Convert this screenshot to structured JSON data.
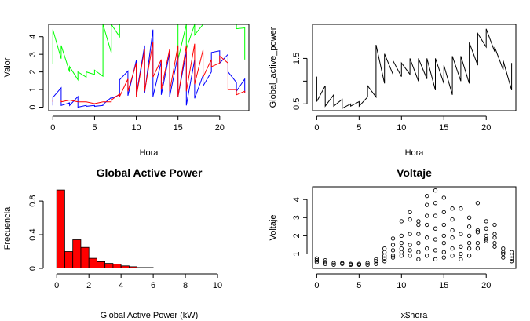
{
  "chart_data": [
    {
      "type": "line",
      "panel": "top-left",
      "title": "",
      "xlabel": "Hora",
      "ylabel": "Valor",
      "xlim": [
        -0.5,
        23.5
      ],
      "ylim": [
        -0.2,
        4.7
      ],
      "xticks": [
        0,
        5,
        10,
        15,
        20
      ],
      "yticks": [
        0,
        1,
        2,
        3,
        4
      ],
      "series": [
        {
          "color": "#00ff00",
          "points": [
            [
              0,
              2.45
            ],
            [
              0,
              4.4
            ],
            [
              1,
              2.75
            ],
            [
              1,
              3.5
            ],
            [
              2,
              2.0
            ],
            [
              2,
              2.3
            ],
            [
              3,
              1.55
            ],
            [
              3,
              2.0
            ],
            [
              4,
              1.7
            ],
            [
              4,
              2.0
            ],
            [
              5,
              1.85
            ],
            [
              5,
              2.1
            ],
            [
              6,
              1.75
            ],
            [
              6,
              4.7
            ],
            [
              7,
              3.1
            ],
            [
              7,
              4.7
            ],
            [
              8,
              4.0
            ],
            [
              8,
              4.7
            ],
            [
              9,
              4.7
            ],
            [
              10,
              4.7
            ],
            [
              11,
              4.7
            ],
            [
              12,
              4.7
            ],
            [
              13,
              4.7
            ],
            [
              14,
              4.7
            ],
            [
              15,
              4.7
            ],
            [
              15,
              2.7
            ],
            [
              16,
              4.7
            ],
            [
              16,
              3.3
            ],
            [
              17,
              4.7
            ],
            [
              17,
              4.1
            ],
            [
              18,
              4.7
            ],
            [
              19,
              4.7
            ],
            [
              20,
              4.7
            ],
            [
              21,
              4.7
            ],
            [
              22,
              4.7
            ],
            [
              22,
              4.45
            ],
            [
              23,
              4.5
            ],
            [
              23,
              2.7
            ]
          ]
        },
        {
          "color": "#0000ff",
          "points": [
            [
              0,
              0.1
            ],
            [
              0,
              0.55
            ],
            [
              1,
              1.1
            ],
            [
              1,
              0.1
            ],
            [
              2,
              0.25
            ],
            [
              2,
              0.1
            ],
            [
              3,
              0.6
            ],
            [
              3,
              0.0
            ],
            [
              4,
              0.1
            ],
            [
              4,
              0.05
            ],
            [
              5,
              0.1
            ],
            [
              5,
              0.05
            ],
            [
              6,
              0.1
            ],
            [
              6,
              0.15
            ],
            [
              7,
              0.55
            ],
            [
              7,
              0.5
            ],
            [
              8,
              0.7
            ],
            [
              8,
              1.55
            ],
            [
              9,
              2.05
            ],
            [
              9,
              0.65
            ],
            [
              10,
              2.65
            ],
            [
              10,
              0.7
            ],
            [
              11,
              3.5
            ],
            [
              11,
              0.8
            ],
            [
              12,
              4.4
            ],
            [
              12,
              0.6
            ],
            [
              13,
              2.6
            ],
            [
              13,
              0.7
            ],
            [
              14,
              3.1
            ],
            [
              14,
              0.6
            ],
            [
              15,
              2.95
            ],
            [
              15,
              0.6
            ],
            [
              16,
              3.15
            ],
            [
              16,
              0.1
            ],
            [
              17,
              2.7
            ],
            [
              17,
              0.5
            ],
            [
              18,
              1.8
            ],
            [
              18,
              1.2
            ],
            [
              19,
              2.0
            ],
            [
              19,
              3.1
            ],
            [
              20,
              3.2
            ],
            [
              20,
              2.5
            ],
            [
              21,
              3.0
            ],
            [
              21,
              2.0
            ],
            [
              22,
              1.4
            ],
            [
              22,
              0.9
            ],
            [
              23,
              1.6
            ],
            [
              23,
              0.8
            ]
          ]
        },
        {
          "color": "#ff0000",
          "points": [
            [
              0,
              0.3
            ],
            [
              0,
              0.4
            ],
            [
              1,
              0.4
            ],
            [
              1,
              0.3
            ],
            [
              2,
              0.4
            ],
            [
              3,
              0.3
            ],
            [
              4,
              0.3
            ],
            [
              5,
              0.2
            ],
            [
              6,
              0.3
            ],
            [
              7,
              0.3
            ],
            [
              7,
              0.4
            ],
            [
              8,
              0.75
            ],
            [
              8,
              0.6
            ],
            [
              9,
              1.6
            ],
            [
              9,
              0.9
            ],
            [
              10,
              2.5
            ],
            [
              10,
              0.6
            ],
            [
              11,
              3.3
            ],
            [
              11,
              0.9
            ],
            [
              12,
              3.7
            ],
            [
              12,
              1.7
            ],
            [
              13,
              2.7
            ],
            [
              13,
              1.0
            ],
            [
              14,
              3.3
            ],
            [
              14,
              0.9
            ],
            [
              15,
              3.5
            ],
            [
              15,
              0.6
            ],
            [
              16,
              3.5
            ],
            [
              16,
              0.9
            ],
            [
              17,
              3.6
            ],
            [
              17,
              1.3
            ],
            [
              18,
              3.25
            ],
            [
              18,
              1.7
            ],
            [
              19,
              2.7
            ],
            [
              19,
              2.3
            ],
            [
              20,
              2.5
            ],
            [
              20,
              2.9
            ],
            [
              21,
              2.5
            ],
            [
              21,
              1.0
            ],
            [
              22,
              1.0
            ],
            [
              22,
              0.7
            ],
            [
              23,
              0.9
            ],
            [
              23,
              0.8
            ]
          ]
        }
      ]
    },
    {
      "type": "line",
      "panel": "top-right",
      "title": "",
      "xlabel": "Hora",
      "ylabel": "Global_active_power",
      "xlim": [
        -0.5,
        23.5
      ],
      "ylim": [
        0.35,
        2.25
      ],
      "xticks": [
        0,
        5,
        10,
        15,
        20
      ],
      "yticks": [
        0.5,
        1.0,
        1.5
      ],
      "ytick_labels": [
        "0.5",
        "",
        "1.5"
      ],
      "series": [
        {
          "color": "#000000",
          "points": [
            [
              0,
              1.1
            ],
            [
              0,
              0.55
            ],
            [
              1,
              0.9
            ],
            [
              1,
              0.45
            ],
            [
              2,
              0.7
            ],
            [
              2,
              0.45
            ],
            [
              3,
              0.6
            ],
            [
              3,
              0.4
            ],
            [
              4,
              0.5
            ],
            [
              4,
              0.45
            ],
            [
              5,
              0.55
            ],
            [
              5,
              0.45
            ],
            [
              6,
              0.65
            ],
            [
              6,
              0.9
            ],
            [
              7,
              0.65
            ],
            [
              7,
              1.8
            ],
            [
              8,
              0.95
            ],
            [
              8,
              1.6
            ],
            [
              9,
              1.15
            ],
            [
              9,
              1.45
            ],
            [
              10,
              1.1
            ],
            [
              10,
              1.4
            ],
            [
              11,
              1.15
            ],
            [
              11,
              1.5
            ],
            [
              12,
              1.0
            ],
            [
              12,
              1.5
            ],
            [
              13,
              1.05
            ],
            [
              13,
              1.5
            ],
            [
              14,
              0.8
            ],
            [
              14,
              1.5
            ],
            [
              15,
              0.95
            ],
            [
              15,
              1.35
            ],
            [
              16,
              0.7
            ],
            [
              16,
              1.55
            ],
            [
              17,
              1.0
            ],
            [
              17,
              1.55
            ],
            [
              18,
              0.95
            ],
            [
              18,
              1.85
            ],
            [
              19,
              1.35
            ],
            [
              19,
              2.05
            ],
            [
              20,
              1.75
            ],
            [
              20,
              2.15
            ],
            [
              21,
              1.65
            ],
            [
              21,
              1.75
            ],
            [
              22,
              1.25
            ],
            [
              22,
              1.45
            ],
            [
              23,
              0.8
            ],
            [
              23,
              1.4
            ]
          ]
        }
      ]
    },
    {
      "type": "bar",
      "panel": "bottom-left",
      "title": "Global Active Power",
      "xlabel": "Global Active Power (kW)",
      "ylabel": "Frecuencia",
      "xlim": [
        -0.5,
        12.0
      ],
      "ylim": [
        0,
        0.95
      ],
      "xticks": [
        0,
        2,
        4,
        6,
        8,
        10
      ],
      "yticks": [
        0.0,
        0.4,
        0.8
      ],
      "bin_width": 0.5,
      "bar_color": "#ff0000",
      "bins_start": [
        0,
        0.5,
        1.0,
        1.5,
        2.0,
        2.5,
        3.0,
        3.5,
        4.0,
        4.5,
        5.0,
        5.5,
        6.0
      ],
      "values": [
        0.93,
        0.2,
        0.34,
        0.25,
        0.12,
        0.08,
        0.06,
        0.05,
        0.03,
        0.02,
        0.01,
        0.01,
        0.005
      ]
    },
    {
      "type": "scatter",
      "panel": "bottom-right",
      "title": "Voltaje",
      "xlabel": "x$hora",
      "ylabel": "Voltaje",
      "xlim": [
        -0.5,
        23.5
      ],
      "ylim": [
        0.2,
        4.7
      ],
      "xticks": [
        0,
        5,
        10,
        15,
        20
      ],
      "yticks": [
        1,
        2,
        3,
        4
      ],
      "points": [
        [
          0,
          0.55
        ],
        [
          0,
          0.65
        ],
        [
          0,
          0.75
        ],
        [
          1,
          0.45
        ],
        [
          1,
          0.55
        ],
        [
          1,
          0.65
        ],
        [
          2,
          0.4
        ],
        [
          2,
          0.5
        ],
        [
          3,
          0.45
        ],
        [
          3,
          0.5
        ],
        [
          4,
          0.4
        ],
        [
          4,
          0.45
        ],
        [
          5,
          0.4
        ],
        [
          5,
          0.45
        ],
        [
          6,
          0.4
        ],
        [
          6,
          0.5
        ],
        [
          7,
          0.45
        ],
        [
          7,
          0.6
        ],
        [
          7,
          0.7
        ],
        [
          8,
          0.6
        ],
        [
          8,
          0.75
        ],
        [
          8,
          0.9
        ],
        [
          8,
          1.1
        ],
        [
          8,
          1.3
        ],
        [
          9,
          0.8
        ],
        [
          9,
          0.9
        ],
        [
          9,
          1.2
        ],
        [
          9,
          1.5
        ],
        [
          9,
          1.85
        ],
        [
          10,
          0.9
        ],
        [
          10,
          1.1
        ],
        [
          10,
          1.3
        ],
        [
          10,
          1.6
        ],
        [
          10,
          2.0
        ],
        [
          10,
          2.8
        ],
        [
          11,
          0.9
        ],
        [
          11,
          1.2
        ],
        [
          11,
          1.5
        ],
        [
          11,
          2.1
        ],
        [
          11,
          2.9
        ],
        [
          11,
          3.3
        ],
        [
          12,
          0.7
        ],
        [
          12,
          1.1
        ],
        [
          12,
          1.6
        ],
        [
          12,
          2.1
        ],
        [
          12,
          2.6
        ],
        [
          12,
          2.8
        ],
        [
          13,
          0.9
        ],
        [
          13,
          1.3
        ],
        [
          13,
          1.9
        ],
        [
          13,
          2.6
        ],
        [
          13,
          3.1
        ],
        [
          13,
          3.7
        ],
        [
          13,
          4.2
        ],
        [
          14,
          0.7
        ],
        [
          14,
          1.2
        ],
        [
          14,
          1.8
        ],
        [
          14,
          2.4
        ],
        [
          14,
          3.1
        ],
        [
          14,
          3.8
        ],
        [
          14,
          4.5
        ],
        [
          15,
          0.8
        ],
        [
          15,
          1.1
        ],
        [
          15,
          1.6
        ],
        [
          15,
          2.0
        ],
        [
          15,
          2.6
        ],
        [
          15,
          3.3
        ],
        [
          15,
          4.1
        ],
        [
          16,
          0.9
        ],
        [
          16,
          1.3
        ],
        [
          16,
          1.9
        ],
        [
          16,
          2.3
        ],
        [
          16,
          2.9
        ],
        [
          16,
          3.5
        ],
        [
          17,
          0.7
        ],
        [
          17,
          1.0
        ],
        [
          17,
          1.4
        ],
        [
          17,
          2.1
        ],
        [
          17,
          3.5
        ],
        [
          18,
          0.9
        ],
        [
          18,
          1.3
        ],
        [
          18,
          1.6
        ],
        [
          18,
          2.0
        ],
        [
          18,
          2.5
        ],
        [
          18,
          3.0
        ],
        [
          19,
          1.3
        ],
        [
          19,
          1.6
        ],
        [
          19,
          2.2
        ],
        [
          19,
          2.3
        ],
        [
          19,
          3.8
        ],
        [
          20,
          1.7
        ],
        [
          20,
          1.8
        ],
        [
          20,
          2.0
        ],
        [
          20,
          2.4
        ],
        [
          20,
          2.8
        ],
        [
          21,
          1.4
        ],
        [
          21,
          1.6
        ],
        [
          21,
          1.9
        ],
        [
          21,
          2.1
        ],
        [
          21,
          2.6
        ],
        [
          22,
          0.8
        ],
        [
          22,
          1.0
        ],
        [
          22,
          1.1
        ],
        [
          22,
          1.3
        ],
        [
          23,
          0.6
        ],
        [
          23,
          0.75
        ],
        [
          23,
          0.9
        ],
        [
          23,
          1.1
        ]
      ]
    }
  ]
}
